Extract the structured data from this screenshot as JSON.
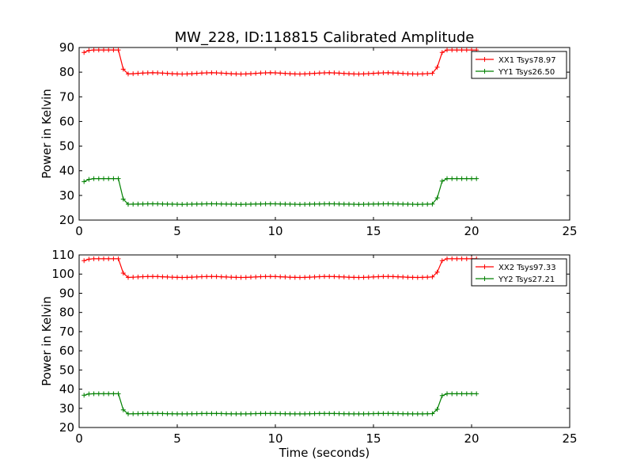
{
  "figure": {
    "title": "MW_228, ID:118815 Calibrated Amplitude",
    "xlabel": "Time (seconds)"
  },
  "chart_data": [
    {
      "type": "line",
      "ylabel": "Power in Kelvin",
      "xlim": [
        0,
        25
      ],
      "ylim": [
        20,
        90
      ],
      "xticks": [
        0,
        5,
        10,
        15,
        20,
        25
      ],
      "yticks": [
        20,
        30,
        40,
        50,
        60,
        70,
        80,
        90
      ],
      "legend_position": "top-right",
      "series": [
        {
          "name": "XX1 Tsys78.97",
          "color": "#ff0000",
          "marker": "plus",
          "baseline": 79.5,
          "plateau": [
            88,
            88.8,
            89,
            89,
            89,
            89,
            89,
            89
          ],
          "drop": 81.2,
          "rise": 82.0
        },
        {
          "name": "YY1 Tsys26.50",
          "color": "#008000",
          "marker": "plus",
          "baseline": 26.5,
          "plateau": [
            35.6,
            36.5,
            36.8,
            36.8,
            36.8,
            36.8,
            36.8,
            36.8
          ],
          "drop": 28.5,
          "rise": 29.0
        }
      ]
    },
    {
      "type": "line",
      "ylabel": "Power in Kelvin",
      "xlim": [
        0,
        25
      ],
      "ylim": [
        20,
        110
      ],
      "xticks": [
        0,
        5,
        10,
        15,
        20,
        25
      ],
      "yticks": [
        20,
        30,
        40,
        50,
        60,
        70,
        80,
        90,
        100,
        110
      ],
      "legend_position": "top-right",
      "series": [
        {
          "name": "XX2 Tsys97.33",
          "color": "#ff0000",
          "marker": "plus",
          "baseline": 98.5,
          "plateau": [
            107,
            107.8,
            108,
            108,
            108,
            108,
            108,
            108
          ],
          "drop": 100.5,
          "rise": 101.0
        },
        {
          "name": "YY2 Tsys27.21",
          "color": "#008000",
          "marker": "plus",
          "baseline": 27.2,
          "plateau": [
            36.8,
            37.5,
            37.6,
            37.6,
            37.6,
            37.6,
            37.6,
            37.6
          ],
          "drop": 29.2,
          "rise": 29.5
        }
      ]
    }
  ]
}
